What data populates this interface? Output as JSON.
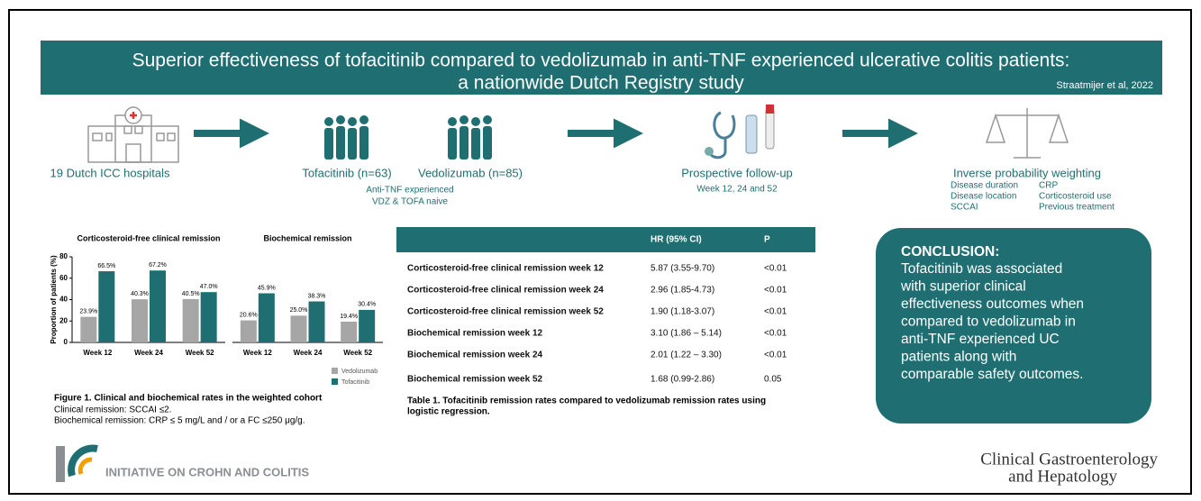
{
  "header": {
    "title_line1": "Superior effectiveness of tofacitinib compared to vedolizumab in anti-TNF experienced ulcerative colitis patients:",
    "title_line2": "a nationwide Dutch Registry study",
    "citation": "Straatmijer et al, 2022"
  },
  "flow": {
    "hospitals": "19 Dutch ICC hospitals",
    "tofacitinib": "Tofacitinib (n=63)",
    "vedolizumab": "Vedolizumab (n=85)",
    "cohort_notes": [
      "Anti-TNF experienced",
      "VDZ & TOFA naive"
    ],
    "followup": "Prospective follow-up",
    "followup_weeks": "Week 12, 24 and 52",
    "weighting": "Inverse probability weighting",
    "weighting_factors_left": [
      "Disease duration",
      "Disease location",
      "SCCAI"
    ],
    "weighting_factors_right": [
      "CRP",
      "Corticosteroid use",
      "Previous treatment"
    ]
  },
  "chart_data": [
    {
      "type": "bar",
      "title": "Corticosteroid-free clinical remission",
      "y_label": "Proportion of patients (%)",
      "categories": [
        "Week 12",
        "Week 24",
        "Week 52"
      ],
      "series": [
        {
          "color": "#a6a6a6",
          "values": [
            23.9,
            40.3,
            40.5
          ],
          "value_labels": [
            "23.9%",
            "40.3%",
            "40.5%"
          ]
        },
        {
          "color": "#1f6e72",
          "values": [
            66.5,
            67.2,
            47.0
          ],
          "value_labels": [
            "66.5%",
            "67.2%",
            "47.0%"
          ]
        }
      ],
      "ylim": [
        0,
        80
      ],
      "yticks": [
        0,
        20,
        40,
        60,
        80
      ]
    },
    {
      "type": "bar",
      "title": "Biochemical remission",
      "categories": [
        "Week 12",
        "Week 24",
        "Week 52"
      ],
      "series": [
        {
          "name": "Vedolizumab",
          "color": "#a6a6a6",
          "values": [
            20.6,
            25.0,
            19.4
          ],
          "value_labels": [
            "20.6%",
            "25.0%",
            "19.4%"
          ]
        },
        {
          "name": "Tofacitinib",
          "color": "#1f6e72",
          "values": [
            45.9,
            38.3,
            30.4
          ],
          "value_labels": [
            "45.9%",
            "38.3%",
            "30.4%"
          ]
        }
      ],
      "ylim": [
        0,
        80
      ]
    }
  ],
  "figure": {
    "caption_title": "Figure 1. Clinical and biochemical rates in the weighted cohort",
    "notes": [
      "Clinical remission: SCCAI ≤2.",
      "Biochemical remission: CRP ≤ 5 mg/L and / or a FC ≤250 μg/g."
    ]
  },
  "table": {
    "columns": [
      "HR (95% CI)",
      "P"
    ],
    "rows": [
      [
        "Corticosteroid-free clinical remission week 12",
        "5.87 (3.55-9.70)",
        "<0.01"
      ],
      [
        "Corticosteroid-free clinical remission week 24",
        "2.96 (1.85-4.73)",
        "<0.01"
      ],
      [
        "Corticosteroid-free clinical remission week 52",
        "1.90 (1.18-3.07)",
        "<0.01"
      ],
      [
        "Biochemical remission week 12",
        "3.10 (1.86 – 5.14)",
        "<0.01"
      ],
      [
        "Biochemical remission week 24",
        "2.01 (1.22 – 3.30)",
        "<0.01"
      ],
      [
        "Biochemical remission week 52",
        "1.68 (0.99-2.86)",
        "0.05"
      ]
    ],
    "caption_lines": [
      "Table 1. Tofacitinib remission rates compared to vedolizumab remission rates using",
      "logistic regression."
    ]
  },
  "conclusion": {
    "heading": "CONCLUSION:",
    "lines": [
      "Tofacitinib was associated",
      "with superior clinical",
      "effectiveness outcomes when",
      "compared to vedolizumab in",
      "anti-TNF experienced UC",
      "patients along with",
      "comparable safety outcomes."
    ]
  },
  "footer": {
    "organization": "INITIATIVE ON CROHN AND COLITIS",
    "journal_line1": "Clinical Gastroenterology",
    "journal_line2": "and Hepatology"
  }
}
